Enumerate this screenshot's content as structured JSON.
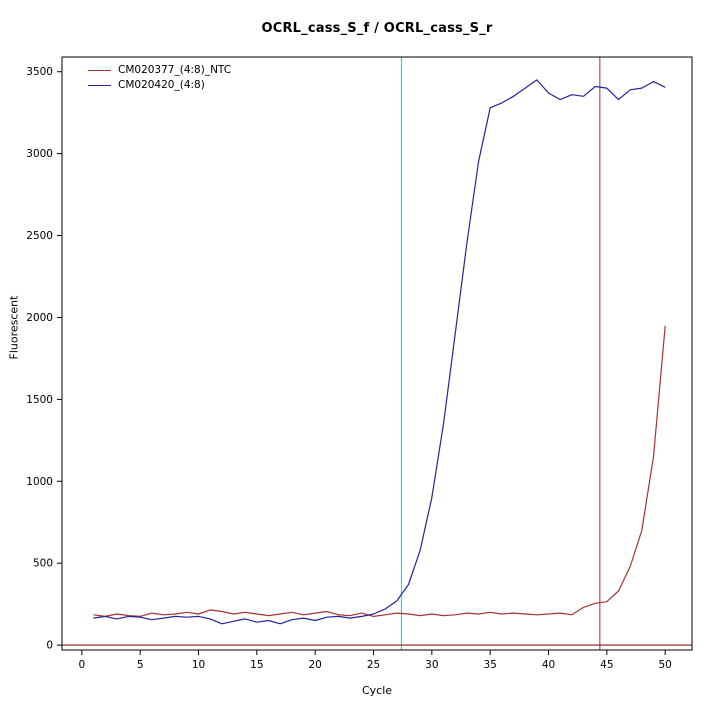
{
  "chart_data": {
    "type": "line",
    "title": "OCRL_cass_S_f / OCRL_cass_S_r",
    "xlabel": "Cycle",
    "ylabel": "Fluorescent",
    "xlim": [
      -1.7,
      52.3
    ],
    "ylim": [
      -30,
      3590
    ],
    "x_ticks": [
      0,
      5,
      10,
      15,
      20,
      25,
      30,
      35,
      40,
      45,
      50
    ],
    "y_ticks": [
      0,
      500,
      1000,
      1500,
      2000,
      2500,
      3000,
      3500
    ],
    "grid": false,
    "legend_position": "top-left",
    "x": [
      1,
      2,
      3,
      4,
      5,
      6,
      7,
      8,
      9,
      10,
      11,
      12,
      13,
      14,
      15,
      16,
      17,
      18,
      19,
      20,
      21,
      22,
      23,
      24,
      25,
      26,
      27,
      28,
      29,
      30,
      31,
      32,
      33,
      34,
      35,
      36,
      37,
      38,
      39,
      40,
      41,
      42,
      43,
      44,
      45,
      46,
      47,
      48,
      49,
      50
    ],
    "series": [
      {
        "name": "CM020377_(4:8)_NTC",
        "color": "#A5342F",
        "values": [
          185,
          175,
          190,
          180,
          175,
          195,
          185,
          190,
          200,
          190,
          215,
          205,
          190,
          200,
          190,
          180,
          190,
          200,
          185,
          195,
          205,
          185,
          180,
          195,
          175,
          185,
          195,
          190,
          180,
          190,
          180,
          185,
          195,
          190,
          200,
          190,
          195,
          190,
          185,
          190,
          195,
          185,
          230,
          255,
          265,
          330,
          480,
          700,
          1150,
          1950
        ]
      },
      {
        "name": "CM020420_(4:8)",
        "color": "#24249B",
        "values": [
          165,
          175,
          160,
          175,
          170,
          155,
          165,
          175,
          170,
          175,
          160,
          130,
          145,
          160,
          140,
          150,
          130,
          155,
          165,
          150,
          170,
          175,
          165,
          175,
          190,
          220,
          270,
          370,
          580,
          900,
          1350,
          1900,
          2450,
          2950,
          3280,
          3310,
          3350,
          3400,
          3450,
          3370,
          3330,
          3360,
          3350,
          3410,
          3400,
          3330,
          3390,
          3400,
          3440,
          3405
        ]
      }
    ],
    "markers": {
      "vertical_lines": [
        {
          "x": 27.4,
          "color": "#00E5EE",
          "name": "ct-marker-sample"
        },
        {
          "x": 44.4,
          "color": "#B35050",
          "name": "ct-marker-ntc"
        }
      ],
      "horizontal_lines": [
        {
          "y": 0,
          "color": "#8B1A1A",
          "name": "baseline-zero"
        }
      ]
    }
  }
}
